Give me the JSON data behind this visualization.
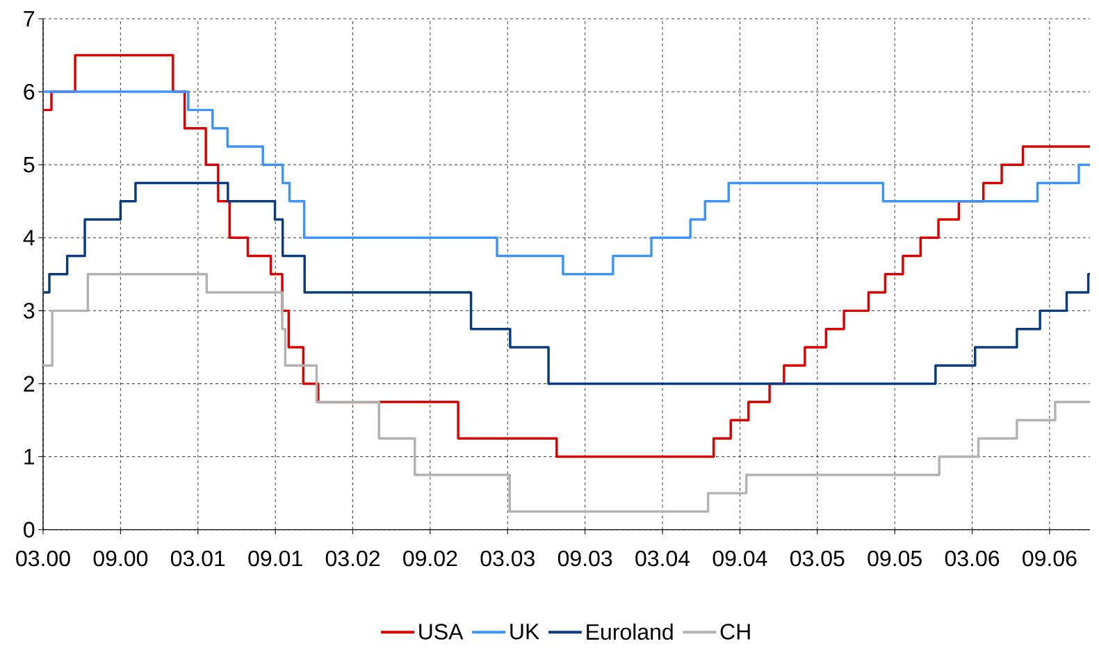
{
  "chart_data": {
    "type": "step",
    "grid": true,
    "legend": "bottom",
    "xlim": [
      "2000-03-01",
      "2006-12-05"
    ],
    "ylim": [
      0,
      7
    ],
    "yticks": [
      0,
      1,
      2,
      3,
      4,
      5,
      6,
      7
    ],
    "xticks": [
      {
        "value": "2000-03",
        "label": "03.00"
      },
      {
        "value": "2000-09",
        "label": "09.00"
      },
      {
        "value": "2001-03",
        "label": "03.01"
      },
      {
        "value": "2001-09",
        "label": "09.01"
      },
      {
        "value": "2002-03",
        "label": "03.02"
      },
      {
        "value": "2002-09",
        "label": "09.02"
      },
      {
        "value": "2003-03",
        "label": "03.03"
      },
      {
        "value": "2003-09",
        "label": "09.03"
      },
      {
        "value": "2004-03",
        "label": "03.04"
      },
      {
        "value": "2004-09",
        "label": "09.04"
      },
      {
        "value": "2005-03",
        "label": "03.05"
      },
      {
        "value": "2005-09",
        "label": "09.05"
      },
      {
        "value": "2006-03",
        "label": "03.06"
      },
      {
        "value": "2006-09",
        "label": "09.06"
      }
    ],
    "series": [
      {
        "name": "USA",
        "color": "#d90000",
        "x": [
          "2000-03-01",
          "2000-03-21",
          "2000-05-16",
          "2001-01-03",
          "2001-01-31",
          "2001-03-20",
          "2001-04-18",
          "2001-05-15",
          "2001-06-27",
          "2001-08-21",
          "2001-09-17",
          "2001-10-02",
          "2001-11-06",
          "2001-12-11",
          "2002-11-06",
          "2003-06-25",
          "2004-06-30",
          "2004-08-10",
          "2004-09-21",
          "2004-11-10",
          "2004-12-14",
          "2005-02-02",
          "2005-03-22",
          "2005-05-03",
          "2005-06-30",
          "2005-08-09",
          "2005-09-20",
          "2005-11-01",
          "2005-12-13",
          "2006-01-31",
          "2006-03-28",
          "2006-05-10",
          "2006-06-29",
          "2006-12-05"
        ],
        "values": [
          5.75,
          6.0,
          6.5,
          6.0,
          5.5,
          5.0,
          4.5,
          4.0,
          3.75,
          3.5,
          3.0,
          2.5,
          2.0,
          1.75,
          1.25,
          1.0,
          1.25,
          1.5,
          1.75,
          2.0,
          2.25,
          2.5,
          2.75,
          3.0,
          3.25,
          3.5,
          3.75,
          4.0,
          4.25,
          4.5,
          4.75,
          5.0,
          5.25,
          5.25
        ]
      },
      {
        "name": "UK",
        "color": "#3d94f6",
        "x": [
          "2000-03-01",
          "2001-02-08",
          "2001-04-05",
          "2001-05-10",
          "2001-08-02",
          "2001-09-18",
          "2001-10-04",
          "2001-11-08",
          "2003-02-06",
          "2003-07-10",
          "2003-11-06",
          "2004-02-05",
          "2004-05-06",
          "2004-06-10",
          "2004-08-05",
          "2005-08-04",
          "2006-08-03",
          "2006-11-09",
          "2006-12-05"
        ],
        "values": [
          6.0,
          5.75,
          5.5,
          5.25,
          5.0,
          4.75,
          4.5,
          4.0,
          3.75,
          3.5,
          3.75,
          4.0,
          4.25,
          4.5,
          4.75,
          4.5,
          4.75,
          5.0,
          5.0
        ]
      },
      {
        "name": "Euroland",
        "color": "#0a3c7d",
        "x": [
          "2000-03-01",
          "2000-03-16",
          "2000-04-27",
          "2000-06-08",
          "2000-09-01",
          "2000-10-06",
          "2001-05-11",
          "2001-08-31",
          "2001-09-18",
          "2001-11-09",
          "2002-12-06",
          "2003-03-07",
          "2003-06-06",
          "2005-12-06",
          "2006-03-08",
          "2006-06-15",
          "2006-08-09",
          "2006-10-11",
          "2006-12-01",
          "2006-12-05"
        ],
        "values": [
          3.25,
          3.5,
          3.75,
          4.25,
          4.5,
          4.75,
          4.5,
          4.25,
          3.75,
          3.25,
          2.75,
          2.5,
          2.0,
          2.25,
          2.5,
          2.75,
          3.0,
          3.25,
          3.5,
          3.5
        ]
      },
      {
        "name": "CH",
        "color": "#b2b2b2",
        "x": [
          "2000-03-01",
          "2000-03-23",
          "2000-06-15",
          "2001-03-22",
          "2001-09-17",
          "2001-09-24",
          "2001-12-07",
          "2002-05-02",
          "2002-07-26",
          "2003-03-06",
          "2004-06-17",
          "2004-09-16",
          "2005-12-15",
          "2006-03-16",
          "2006-06-15",
          "2006-09-14",
          "2006-12-05"
        ],
        "values": [
          2.25,
          3.0,
          3.5,
          3.25,
          2.75,
          2.25,
          1.75,
          1.25,
          0.75,
          0.25,
          0.5,
          0.75,
          1.0,
          1.25,
          1.5,
          1.75,
          1.75
        ]
      }
    ]
  }
}
